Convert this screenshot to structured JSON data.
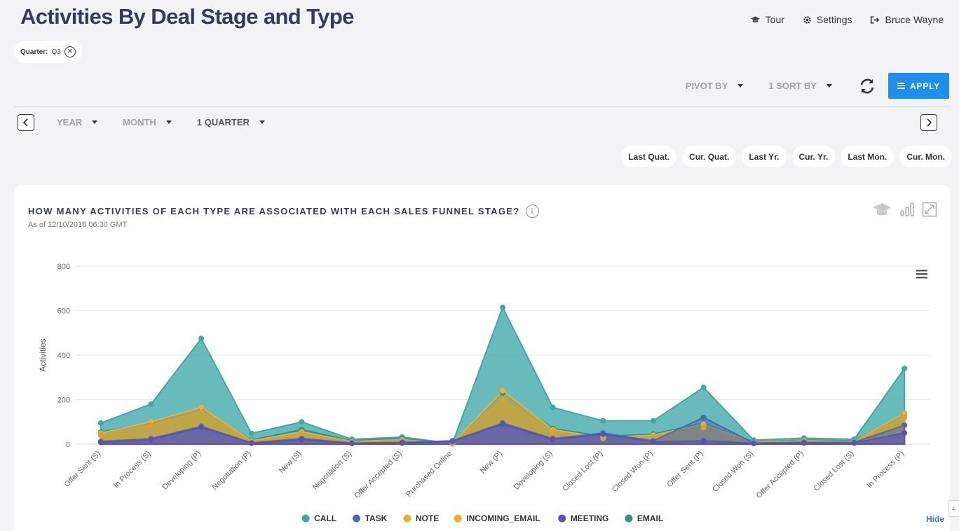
{
  "page": {
    "title": "Activities By Deal Stage and Type"
  },
  "nav": {
    "tour": "Tour",
    "settings": "Settings",
    "user": "Bruce Wayne"
  },
  "filter": {
    "label": "Quarter:",
    "value": "Q3"
  },
  "toolbar": {
    "pivot_by": "PIVOT BY",
    "sort_by": "1 SORT BY",
    "apply": "APPLY"
  },
  "period": {
    "year": "YEAR",
    "month": "MONTH",
    "quarter": "1 QUARTER"
  },
  "shortcuts": [
    "Last Quat.",
    "Cur. Quat.",
    "Last Yr.",
    "Cur. Yr.",
    "Last Mon.",
    "Cur. Mon."
  ],
  "card": {
    "title": "HOW MANY ACTIVITIES OF EACH TYPE ARE ASSOCIATED WITH EACH SALES FUNNEL STAGE?",
    "subtitle": "As of 12/10/2018 06:30 GMT",
    "hide": "Hide"
  },
  "chart_data": {
    "type": "area",
    "ylabel": "Activities",
    "ylim": [
      0,
      800
    ],
    "yticks": [
      0,
      200,
      400,
      600,
      800
    ],
    "grid": true,
    "legend": "bottom",
    "categories": [
      "Offer Sent (S)",
      "In Process (S)",
      "Developing (P)",
      "Negotiation (P)",
      "New (S)",
      "Negotiation (S)",
      "Offer Accepted (S)",
      "Purchased Online",
      "New (P)",
      "Developing (S)",
      "Closed Lost (P)",
      "Closed Won (P)",
      "Offer Sent (P)",
      "Closed Won (S)",
      "Offer Accepted (P)",
      "Closed Lost (S)",
      "In Process (P)"
    ],
    "series": [
      {
        "name": "CALL",
        "color": "#3ea8a8",
        "values": [
          95,
          180,
          475,
          48,
          100,
          22,
          32,
          3,
          615,
          165,
          105,
          105,
          255,
          18,
          27,
          22,
          340
        ]
      },
      {
        "name": "EMAIL",
        "color": "#2f8f8b",
        "values": [
          55,
          95,
          160,
          18,
          65,
          15,
          25,
          2,
          230,
          70,
          35,
          45,
          95,
          10,
          18,
          15,
          135
        ]
      },
      {
        "name": "NOTE",
        "color": "#f0ad35",
        "values": [
          50,
          100,
          165,
          15,
          55,
          12,
          20,
          2,
          240,
          65,
          30,
          40,
          90,
          8,
          15,
          12,
          140
        ]
      },
      {
        "name": "INCOMING_EMAIL",
        "color": "#d4a232",
        "values": [
          40,
          85,
          145,
          12,
          45,
          10,
          18,
          2,
          200,
          55,
          25,
          35,
          75,
          6,
          12,
          10,
          120
        ]
      },
      {
        "name": "TASK",
        "color": "#4a6bb5",
        "values": [
          12,
          25,
          80,
          6,
          25,
          5,
          8,
          15,
          95,
          25,
          50,
          15,
          120,
          5,
          8,
          8,
          85
        ]
      },
      {
        "name": "MEETING",
        "color": "#5a4fc0",
        "values": [
          8,
          20,
          75,
          4,
          20,
          3,
          5,
          12,
          90,
          20,
          45,
          10,
          15,
          3,
          5,
          5,
          50
        ]
      }
    ]
  }
}
